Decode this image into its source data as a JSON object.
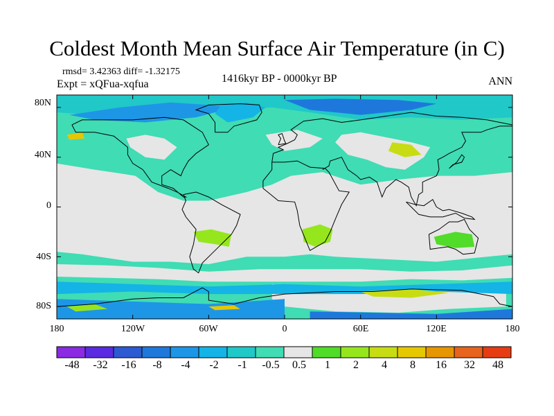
{
  "header": {
    "title": "Coldest Month Mean Surface Air Temperature (in C)",
    "stats": "rmsd= 3.42363 diff= -1.32175",
    "experiment": "Expt = xQFua-xqfua",
    "period": "1416kyr BP - 0000kyr BP",
    "season": "ANN"
  },
  "axes": {
    "lat_labels": [
      "80N",
      "40N",
      "0",
      "40S",
      "80S"
    ],
    "lon_labels": [
      "180",
      "120W",
      "60W",
      "0",
      "60E",
      "120E",
      "180"
    ]
  },
  "colorbar": {
    "colors": [
      "#8a2be2",
      "#5a2be0",
      "#2d5ad2",
      "#1e78dc",
      "#1e96e6",
      "#14b4e6",
      "#20c8c8",
      "#40dcb4",
      "#e6e6e6",
      "#50dc28",
      "#96e61e",
      "#c8dc14",
      "#e6c800",
      "#e69600",
      "#e6641e",
      "#e63c14"
    ],
    "labels": [
      "-48",
      "-32",
      "-16",
      "-8",
      "-4",
      "-2",
      "-1",
      "-0.5",
      "0.5",
      "1",
      "2",
      "4",
      "8",
      "16",
      "32",
      "48"
    ]
  },
  "map_colors": {
    "background": "#40dcb4",
    "neutral": "#e6e6e6",
    "cyan": "#20c8c8",
    "light_blue": "#14b4e6",
    "blue": "#1e96e6",
    "dark_blue": "#1e78dc",
    "deep_blue": "#2d5ad2",
    "green": "#50dc28",
    "yellow_green": "#96e61e",
    "lime": "#c8dc14",
    "gold": "#e6c800",
    "coast": "#000000"
  }
}
